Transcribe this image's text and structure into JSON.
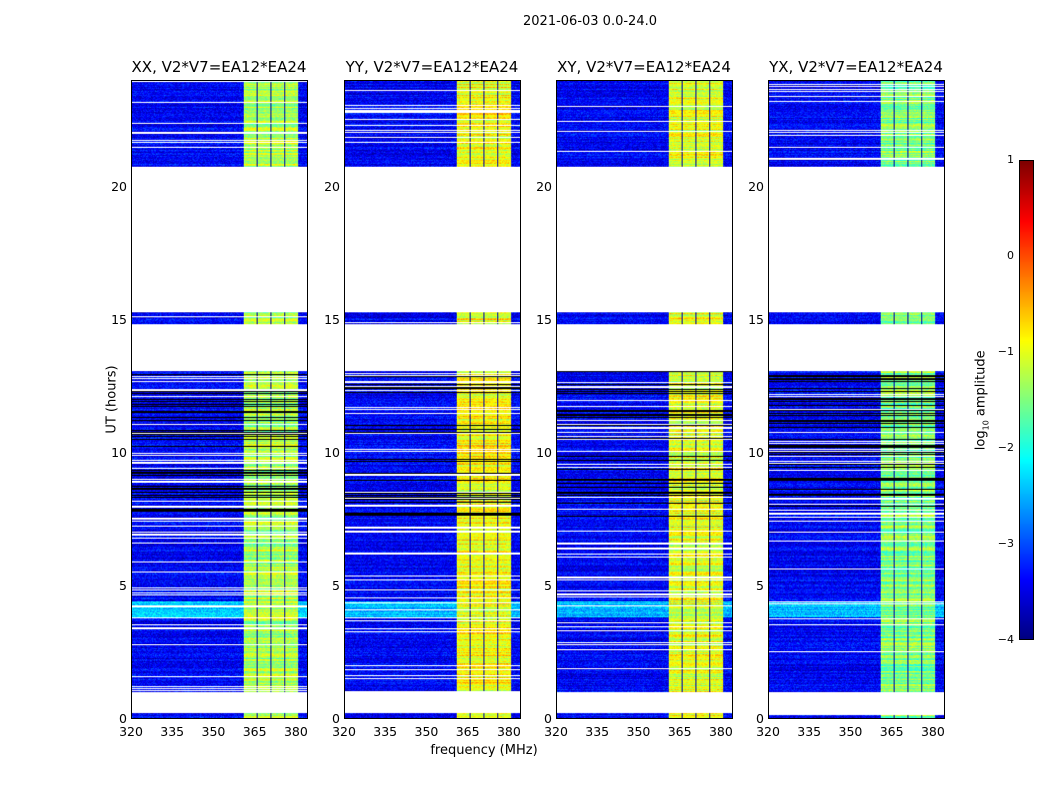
{
  "chart_data": {
    "type": "heatmap",
    "title": "2021-06-03 0.0-24.0",
    "xlabel": "frequency (MHz)",
    "ylabel": "UT (hours)",
    "xlim": [
      320,
      384.4
    ],
    "ylim": [
      0,
      24
    ],
    "xticks": [
      "320",
      "335",
      "350",
      "365",
      "380"
    ],
    "xtick_values": [
      320,
      335,
      350,
      365,
      380
    ],
    "yticks": [
      "0",
      "5",
      "10",
      "15",
      "20"
    ],
    "ytick_values": [
      0,
      5,
      10,
      15,
      20
    ],
    "panels": [
      {
        "title": "XX, V2*V7=EA12*EA24",
        "band_level": -1.3
      },
      {
        "title": "YY, V2*V7=EA12*EA24",
        "band_level": -0.9
      },
      {
        "title": "XY, V2*V7=EA12*EA24",
        "band_level": -1.0
      },
      {
        "title": "YX, V2*V7=EA12*EA24",
        "band_level": -1.5
      }
    ],
    "data_segments_hours": [
      [
        0,
        0.2
      ],
      [
        1.0,
        7.6
      ],
      [
        7.6,
        13.1
      ],
      [
        14.85,
        15.3
      ],
      [
        20.8,
        24
      ]
    ],
    "bright_band_mhz": [
      361,
      381
    ],
    "background_level": -3.4,
    "colorbar": {
      "label": "log10 amplitude",
      "label_main": "log",
      "label_sub": "10",
      "label_tail": " amplitude",
      "min": -4,
      "max": 1,
      "ticks": [
        "1",
        "0",
        "−1",
        "−2",
        "−3",
        "−4"
      ],
      "tick_values": [
        1,
        0,
        -1,
        -2,
        -3,
        -4
      ],
      "colormap": "jet"
    }
  }
}
